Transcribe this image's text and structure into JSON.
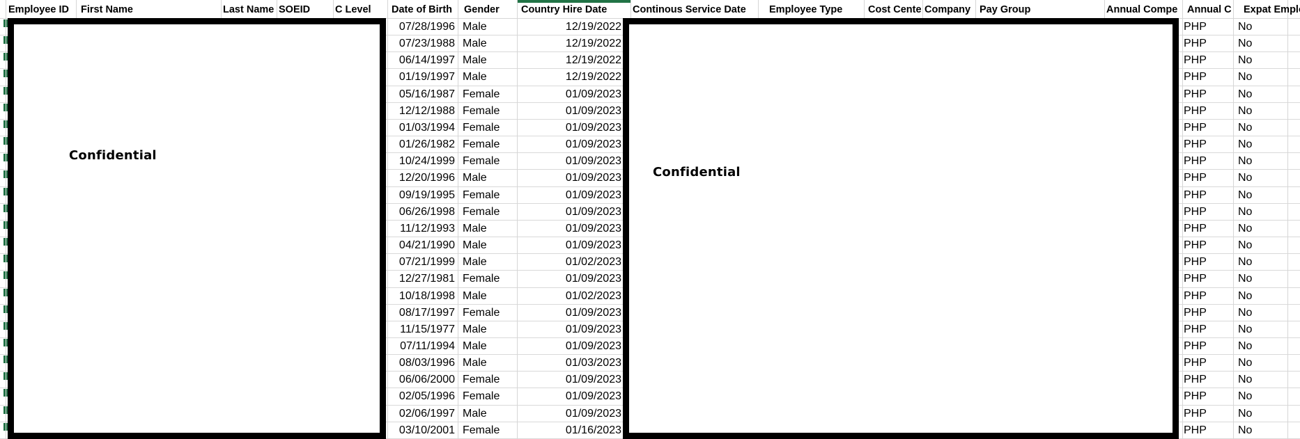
{
  "columns": [
    {
      "label": "Employee ID"
    },
    {
      "label": "First Name"
    },
    {
      "label": "Last Name"
    },
    {
      "label": "SOEID"
    },
    {
      "label": "C Level"
    },
    {
      "label": "Date of Birth"
    },
    {
      "label": "Gender"
    },
    {
      "label": "Country Hire Date"
    },
    {
      "label": "Continous Service Date"
    },
    {
      "label": "Employee Type"
    },
    {
      "label": "Cost Cente"
    },
    {
      "label": "Company"
    },
    {
      "label": "Pay Group"
    },
    {
      "label": "Annual Compe"
    },
    {
      "label": "Annual Co"
    },
    {
      "label": "Expat Emplo"
    }
  ],
  "rows": [
    {
      "date_of_birth": "07/28/1996",
      "gender": "Male",
      "country_hire_date": "12/19/2022",
      "annual_currency": "PHP",
      "expat_employee": "No"
    },
    {
      "date_of_birth": "07/23/1988",
      "gender": "Male",
      "country_hire_date": "12/19/2022",
      "annual_currency": "PHP",
      "expat_employee": "No"
    },
    {
      "date_of_birth": "06/14/1997",
      "gender": "Male",
      "country_hire_date": "12/19/2022",
      "annual_currency": "PHP",
      "expat_employee": "No"
    },
    {
      "date_of_birth": "01/19/1997",
      "gender": "Male",
      "country_hire_date": "12/19/2022",
      "annual_currency": "PHP",
      "expat_employee": "No"
    },
    {
      "date_of_birth": "05/16/1987",
      "gender": "Female",
      "country_hire_date": "01/09/2023",
      "annual_currency": "PHP",
      "expat_employee": "No"
    },
    {
      "date_of_birth": "12/12/1988",
      "gender": "Female",
      "country_hire_date": "01/09/2023",
      "annual_currency": "PHP",
      "expat_employee": "No"
    },
    {
      "date_of_birth": "01/03/1994",
      "gender": "Female",
      "country_hire_date": "01/09/2023",
      "annual_currency": "PHP",
      "expat_employee": "No"
    },
    {
      "date_of_birth": "01/26/1982",
      "gender": "Female",
      "country_hire_date": "01/09/2023",
      "annual_currency": "PHP",
      "expat_employee": "No"
    },
    {
      "date_of_birth": "10/24/1999",
      "gender": "Female",
      "country_hire_date": "01/09/2023",
      "annual_currency": "PHP",
      "expat_employee": "No"
    },
    {
      "date_of_birth": "12/20/1996",
      "gender": "Male",
      "country_hire_date": "01/09/2023",
      "annual_currency": "PHP",
      "expat_employee": "No"
    },
    {
      "date_of_birth": "09/19/1995",
      "gender": "Female",
      "country_hire_date": "01/09/2023",
      "annual_currency": "PHP",
      "expat_employee": "No"
    },
    {
      "date_of_birth": "06/26/1998",
      "gender": "Female",
      "country_hire_date": "01/09/2023",
      "annual_currency": "PHP",
      "expat_employee": "No"
    },
    {
      "date_of_birth": "11/12/1993",
      "gender": "Male",
      "country_hire_date": "01/09/2023",
      "annual_currency": "PHP",
      "expat_employee": "No"
    },
    {
      "date_of_birth": "04/21/1990",
      "gender": "Male",
      "country_hire_date": "01/09/2023",
      "annual_currency": "PHP",
      "expat_employee": "No"
    },
    {
      "date_of_birth": "07/21/1999",
      "gender": "Male",
      "country_hire_date": "01/02/2023",
      "annual_currency": "PHP",
      "expat_employee": "No"
    },
    {
      "date_of_birth": "12/27/1981",
      "gender": "Female",
      "country_hire_date": "01/09/2023",
      "annual_currency": "PHP",
      "expat_employee": "No"
    },
    {
      "date_of_birth": "10/18/1998",
      "gender": "Male",
      "country_hire_date": "01/02/2023",
      "annual_currency": "PHP",
      "expat_employee": "No"
    },
    {
      "date_of_birth": "08/17/1997",
      "gender": "Female",
      "country_hire_date": "01/09/2023",
      "annual_currency": "PHP",
      "expat_employee": "No"
    },
    {
      "date_of_birth": "11/15/1977",
      "gender": "Male",
      "country_hire_date": "01/09/2023",
      "annual_currency": "PHP",
      "expat_employee": "No"
    },
    {
      "date_of_birth": "07/11/1994",
      "gender": "Male",
      "country_hire_date": "01/09/2023",
      "annual_currency": "PHP",
      "expat_employee": "No"
    },
    {
      "date_of_birth": "08/03/1996",
      "gender": "Male",
      "country_hire_date": "01/03/2023",
      "annual_currency": "PHP",
      "expat_employee": "No"
    },
    {
      "date_of_birth": "06/06/2000",
      "gender": "Female",
      "country_hire_date": "01/09/2023",
      "annual_currency": "PHP",
      "expat_employee": "No"
    },
    {
      "date_of_birth": "02/05/1996",
      "gender": "Female",
      "country_hire_date": "01/09/2023",
      "annual_currency": "PHP",
      "expat_employee": "No"
    },
    {
      "date_of_birth": "02/06/1997",
      "gender": "Male",
      "country_hire_date": "01/09/2023",
      "annual_currency": "PHP",
      "expat_employee": "No"
    },
    {
      "date_of_birth": "03/10/2001",
      "gender": "Female",
      "country_hire_date": "01/16/2023",
      "annual_currency": "PHP",
      "expat_employee": "No"
    }
  ],
  "redactions": [
    {
      "label": "Confidential"
    },
    {
      "label": "Confidential"
    }
  ],
  "colors": {
    "accent_green": "#217346",
    "gridline": "#d6d6d6",
    "redaction_border": "#000000",
    "text": "#000000"
  }
}
